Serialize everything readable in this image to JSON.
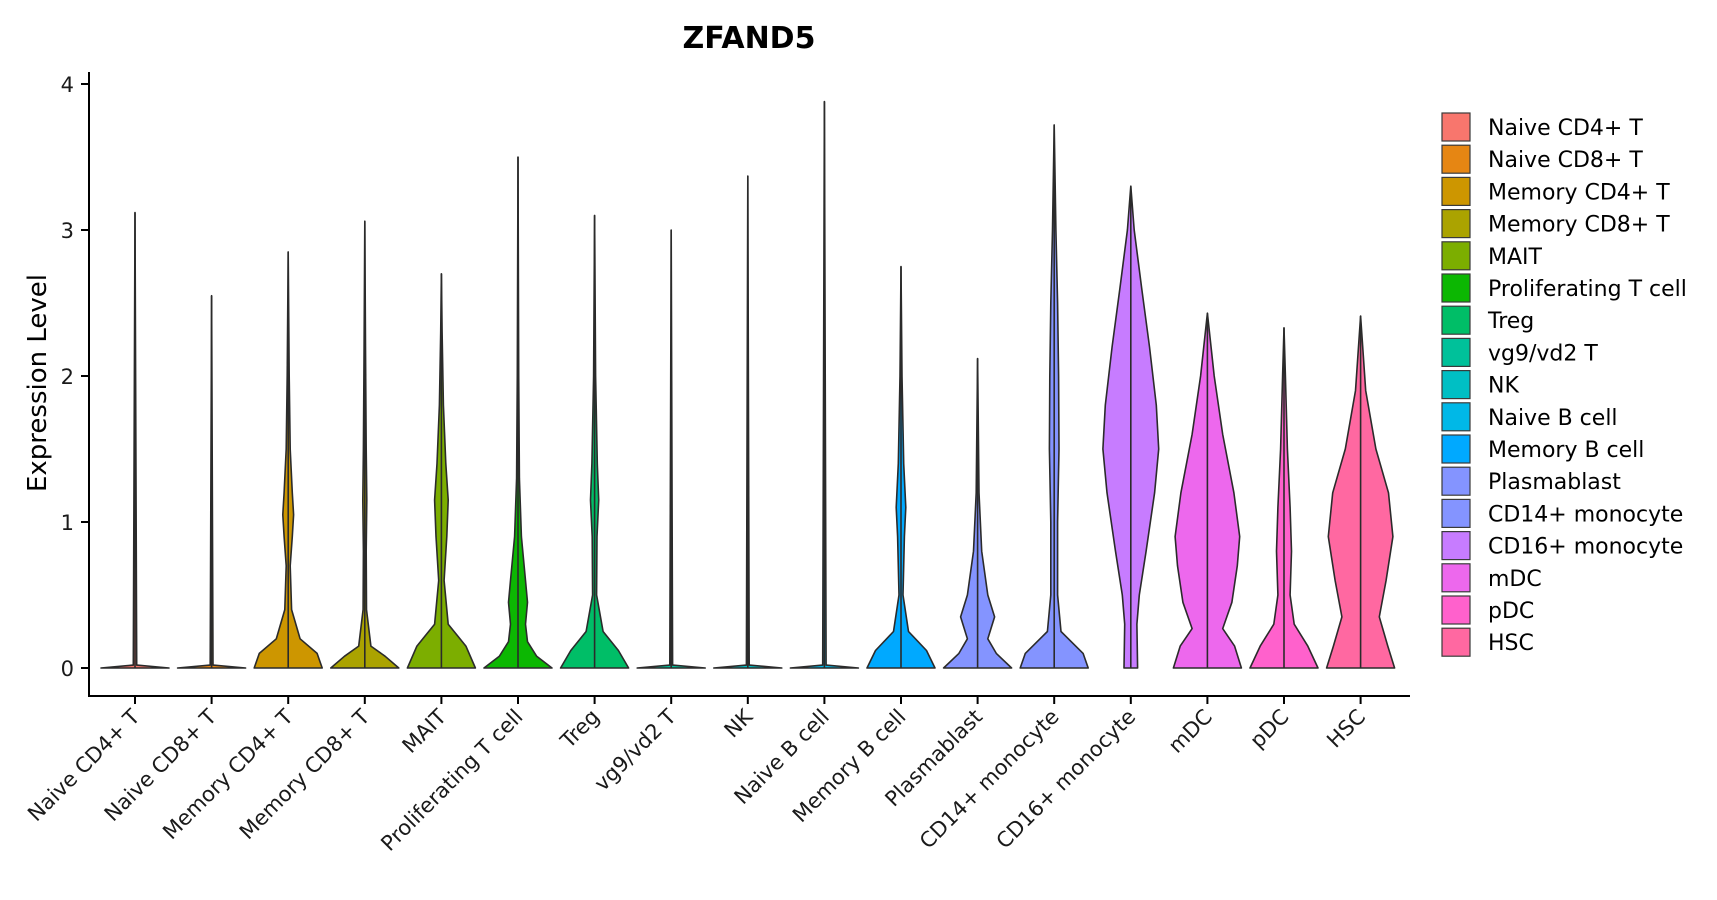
{
  "chart_data": {
    "type": "violin",
    "title": "ZFAND5",
    "xlabel": "",
    "ylabel": "Expression Level",
    "ylim": [
      -0.2,
      4.1
    ],
    "yticks": [
      0,
      1,
      2,
      3,
      4
    ],
    "legend_position": "right",
    "categories": [
      "Naive CD4+ T",
      "Naive CD8+ T",
      "Memory CD4+ T",
      "Memory CD8+ T",
      "MAIT",
      "Proliferating T cell",
      "Treg",
      "vg9/vd2 T",
      "NK",
      "Naive B cell",
      "Memory B cell",
      "Plasmablast",
      "CD14+ monocyte",
      "CD16+ monocyte",
      "mDC",
      "pDC",
      "HSC"
    ],
    "colors": [
      "#F8766D",
      "#E68613",
      "#CD9600",
      "#ABA300",
      "#7CAE00",
      "#0CB702",
      "#00BE67",
      "#00C19A",
      "#00BFC4",
      "#00B8E7",
      "#00A9FF",
      "#8494FF",
      "#8494FF",
      "#C77CFF",
      "#ED68ED",
      "#FF61CC",
      "#FF68A1"
    ],
    "series": [
      {
        "name": "Naive CD4+ T",
        "max": 3.12,
        "density": [
          [
            0,
            1.0
          ],
          [
            0.02,
            0.05
          ],
          [
            3.12,
            0
          ]
        ]
      },
      {
        "name": "Naive CD8+ T",
        "max": 2.55,
        "density": [
          [
            0,
            1.0
          ],
          [
            0.02,
            0.04
          ],
          [
            2.55,
            0
          ]
        ]
      },
      {
        "name": "Memory CD4+ T",
        "max": 2.85,
        "density": [
          [
            0,
            1.0
          ],
          [
            0.1,
            0.85
          ],
          [
            0.2,
            0.35
          ],
          [
            0.4,
            0.1
          ],
          [
            0.7,
            0.06
          ],
          [
            0.9,
            0.12
          ],
          [
            1.05,
            0.16
          ],
          [
            1.2,
            0.12
          ],
          [
            1.5,
            0.06
          ],
          [
            2.0,
            0.03
          ],
          [
            2.85,
            0
          ]
        ]
      },
      {
        "name": "Memory CD8+ T",
        "max": 3.06,
        "density": [
          [
            0,
            1.0
          ],
          [
            0.08,
            0.6
          ],
          [
            0.15,
            0.18
          ],
          [
            0.4,
            0.05
          ],
          [
            0.8,
            0.04
          ],
          [
            1.15,
            0.06
          ],
          [
            1.5,
            0.04
          ],
          [
            2.2,
            0.02
          ],
          [
            3.06,
            0
          ]
        ]
      },
      {
        "name": "MAIT",
        "max": 2.7,
        "density": [
          [
            0,
            1.0
          ],
          [
            0.15,
            0.72
          ],
          [
            0.3,
            0.2
          ],
          [
            0.6,
            0.08
          ],
          [
            0.9,
            0.16
          ],
          [
            1.15,
            0.2
          ],
          [
            1.4,
            0.13
          ],
          [
            1.8,
            0.06
          ],
          [
            2.3,
            0.02
          ],
          [
            2.7,
            0
          ]
        ]
      },
      {
        "name": "Proliferating T cell",
        "max": 3.5,
        "density": [
          [
            0,
            1.0
          ],
          [
            0.08,
            0.55
          ],
          [
            0.18,
            0.28
          ],
          [
            0.3,
            0.22
          ],
          [
            0.45,
            0.28
          ],
          [
            0.6,
            0.22
          ],
          [
            0.9,
            0.1
          ],
          [
            1.3,
            0.04
          ],
          [
            2.0,
            0.02
          ],
          [
            3.5,
            0
          ]
        ]
      },
      {
        "name": "Treg",
        "max": 3.1,
        "density": [
          [
            0,
            1.0
          ],
          [
            0.12,
            0.7
          ],
          [
            0.25,
            0.25
          ],
          [
            0.5,
            0.06
          ],
          [
            0.9,
            0.07
          ],
          [
            1.15,
            0.12
          ],
          [
            1.4,
            0.08
          ],
          [
            2.0,
            0.03
          ],
          [
            3.1,
            0
          ]
        ]
      },
      {
        "name": "vg9/vd2 T",
        "max": 3.0,
        "density": [
          [
            0,
            1.0
          ],
          [
            0.02,
            0.04
          ],
          [
            3.0,
            0
          ]
        ]
      },
      {
        "name": "NK",
        "max": 3.37,
        "density": [
          [
            0,
            1.0
          ],
          [
            0.02,
            0.04
          ],
          [
            3.37,
            0
          ]
        ]
      },
      {
        "name": "Naive B cell",
        "max": 3.88,
        "density": [
          [
            0,
            1.0
          ],
          [
            0.02,
            0.05
          ],
          [
            3.88,
            0
          ]
        ]
      },
      {
        "name": "Memory B cell",
        "max": 2.75,
        "density": [
          [
            0,
            1.0
          ],
          [
            0.12,
            0.75
          ],
          [
            0.25,
            0.22
          ],
          [
            0.5,
            0.06
          ],
          [
            0.9,
            0.1
          ],
          [
            1.1,
            0.14
          ],
          [
            1.4,
            0.08
          ],
          [
            2.0,
            0.03
          ],
          [
            2.75,
            0
          ]
        ]
      },
      {
        "name": "Plasmablast",
        "max": 2.12,
        "density": [
          [
            0,
            1.0
          ],
          [
            0.1,
            0.55
          ],
          [
            0.2,
            0.3
          ],
          [
            0.35,
            0.5
          ],
          [
            0.5,
            0.3
          ],
          [
            0.8,
            0.12
          ],
          [
            1.2,
            0.04
          ],
          [
            2.12,
            0
          ]
        ]
      },
      {
        "name": "CD14+ monocyte",
        "max": 3.72,
        "density": [
          [
            0,
            1.0
          ],
          [
            0.1,
            0.85
          ],
          [
            0.25,
            0.2
          ],
          [
            0.5,
            0.1
          ],
          [
            1.0,
            0.1
          ],
          [
            1.5,
            0.14
          ],
          [
            2.0,
            0.13
          ],
          [
            2.5,
            0.1
          ],
          [
            3.0,
            0.05
          ],
          [
            3.72,
            0
          ]
        ]
      },
      {
        "name": "CD16+ monocyte",
        "max": 3.3,
        "density": [
          [
            0,
            0.2
          ],
          [
            0.3,
            0.18
          ],
          [
            0.5,
            0.25
          ],
          [
            0.8,
            0.45
          ],
          [
            1.2,
            0.7
          ],
          [
            1.5,
            0.82
          ],
          [
            1.8,
            0.75
          ],
          [
            2.2,
            0.55
          ],
          [
            2.6,
            0.32
          ],
          [
            3.0,
            0.1
          ],
          [
            3.3,
            0
          ]
        ]
      },
      {
        "name": "mDC",
        "max": 2.43,
        "density": [
          [
            0,
            1.0
          ],
          [
            0.15,
            0.8
          ],
          [
            0.27,
            0.45
          ],
          [
            0.45,
            0.72
          ],
          [
            0.7,
            0.88
          ],
          [
            0.9,
            0.95
          ],
          [
            1.2,
            0.78
          ],
          [
            1.6,
            0.45
          ],
          [
            2.0,
            0.2
          ],
          [
            2.43,
            0
          ]
        ]
      },
      {
        "name": "pDC",
        "max": 2.33,
        "density": [
          [
            0,
            1.0
          ],
          [
            0.15,
            0.7
          ],
          [
            0.3,
            0.3
          ],
          [
            0.5,
            0.18
          ],
          [
            0.8,
            0.22
          ],
          [
            1.1,
            0.18
          ],
          [
            1.5,
            0.1
          ],
          [
            2.0,
            0.04
          ],
          [
            2.33,
            0
          ]
        ]
      },
      {
        "name": "HSC",
        "max": 2.41,
        "density": [
          [
            0,
            1.0
          ],
          [
            0.15,
            0.8
          ],
          [
            0.35,
            0.55
          ],
          [
            0.6,
            0.75
          ],
          [
            0.9,
            0.95
          ],
          [
            1.2,
            0.82
          ],
          [
            1.5,
            0.45
          ],
          [
            1.9,
            0.15
          ],
          [
            2.41,
            0
          ]
        ]
      }
    ]
  }
}
